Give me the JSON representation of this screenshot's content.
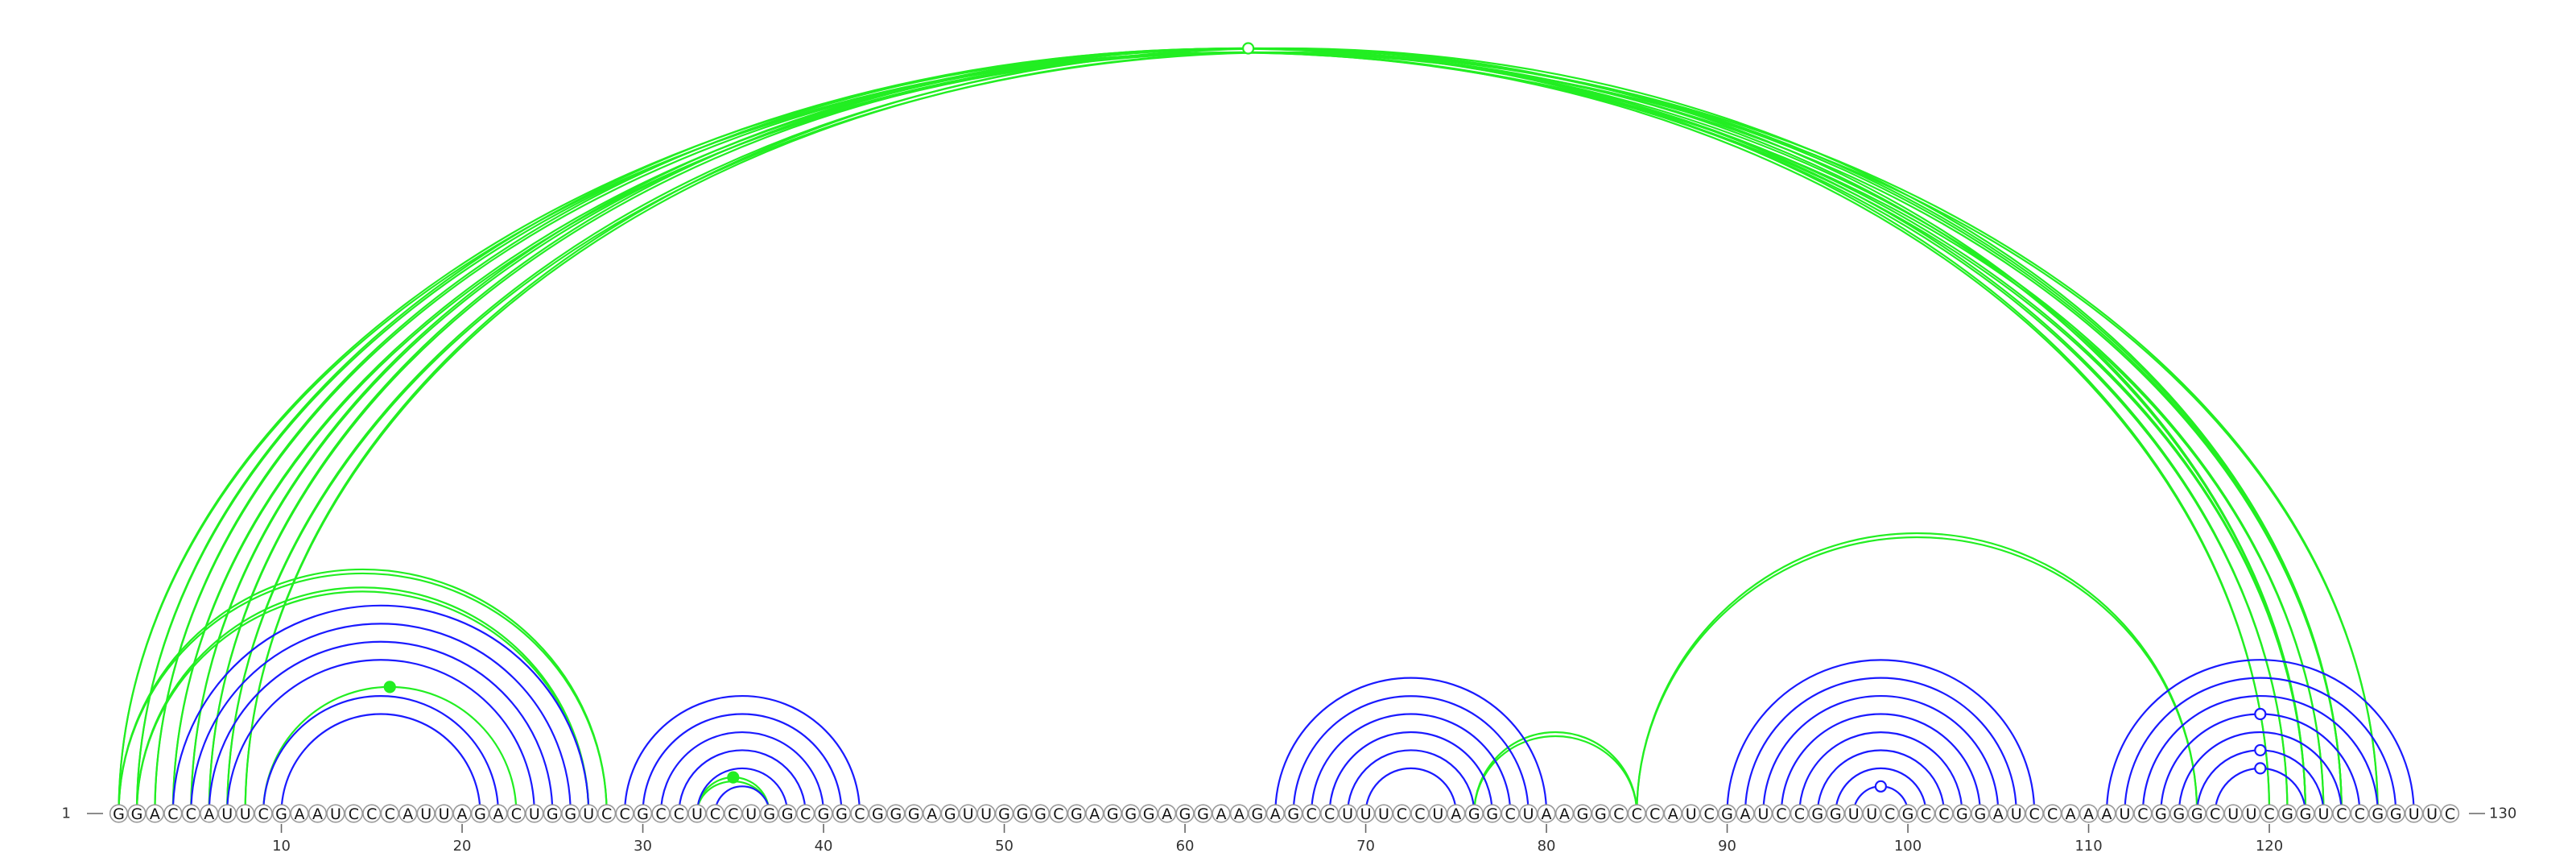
{
  "sequence": "GGACCAUUCGAAUCCCAUUAGACUGGUCCGCCUCCUGGCGGCGGGAGUUGGGCGAGGGAGGAAGAGCCUUUCCUAGGCUAAGGCCCAUCGAUCCGGUUCGCCGGAUCCAAAUCGGGCUUCGGUCCGGUUC",
  "axis": {
    "start_label": "1",
    "end_label": "130",
    "ticks": [
      10,
      20,
      30,
      40,
      50,
      60,
      70,
      80,
      90,
      100,
      110,
      120
    ]
  },
  "colors": {
    "blue": "#1a1aff",
    "green": "#22ee22"
  },
  "arc_groups": [
    {
      "color": "green",
      "from": 1,
      "to": 126,
      "style": "double"
    },
    {
      "color": "green",
      "from": 1,
      "to": 28,
      "style": "double"
    },
    {
      "color": "green",
      "from": 2,
      "to": 123,
      "style": "double"
    },
    {
      "color": "green",
      "from": 2,
      "to": 27,
      "style": "double"
    },
    {
      "color": "green",
      "from": 3,
      "to": 122,
      "style": "double"
    },
    {
      "color": "green",
      "from": 4,
      "to": 124,
      "style": "double"
    },
    {
      "color": "green",
      "from": 5,
      "to": 121,
      "style": "double"
    },
    {
      "color": "green",
      "from": 6,
      "to": 120,
      "style": "double"
    },
    {
      "color": "green",
      "from": 7,
      "to": 124,
      "style": "double"
    },
    {
      "color": "green",
      "from": 8,
      "to": 122,
      "style": "double"
    },
    {
      "color": "green",
      "from": 9,
      "to": 23,
      "style": "single"
    },
    {
      "color": "green",
      "from": 33,
      "to": 37,
      "style": "double"
    },
    {
      "color": "green",
      "from": 76,
      "to": 85,
      "style": "double"
    },
    {
      "color": "green",
      "from": 85,
      "to": 116,
      "style": "double"
    },
    {
      "color": "blue",
      "from": 4,
      "to": 27,
      "style": "single"
    },
    {
      "color": "blue",
      "from": 5,
      "to": 26,
      "style": "single"
    },
    {
      "color": "blue",
      "from": 6,
      "to": 25,
      "style": "single"
    },
    {
      "color": "blue",
      "from": 7,
      "to": 24,
      "style": "single"
    },
    {
      "color": "blue",
      "from": 9,
      "to": 22,
      "style": "single"
    },
    {
      "color": "blue",
      "from": 10,
      "to": 21,
      "style": "single"
    },
    {
      "color": "blue",
      "from": 29,
      "to": 42,
      "style": "single"
    },
    {
      "color": "blue",
      "from": 30,
      "to": 41,
      "style": "single"
    },
    {
      "color": "blue",
      "from": 31,
      "to": 40,
      "style": "single"
    },
    {
      "color": "blue",
      "from": 32,
      "to": 39,
      "style": "single"
    },
    {
      "color": "blue",
      "from": 33,
      "to": 38,
      "style": "single"
    },
    {
      "color": "blue",
      "from": 34,
      "to": 37,
      "style": "single"
    },
    {
      "color": "blue",
      "from": 65,
      "to": 80,
      "style": "single"
    },
    {
      "color": "blue",
      "from": 66,
      "to": 79,
      "style": "single"
    },
    {
      "color": "blue",
      "from": 67,
      "to": 78,
      "style": "single"
    },
    {
      "color": "blue",
      "from": 68,
      "to": 77,
      "style": "single"
    },
    {
      "color": "blue",
      "from": 69,
      "to": 76,
      "style": "single"
    },
    {
      "color": "blue",
      "from": 70,
      "to": 75,
      "style": "single"
    },
    {
      "color": "blue",
      "from": 90,
      "to": 107,
      "style": "single"
    },
    {
      "color": "blue",
      "from": 91,
      "to": 106,
      "style": "single"
    },
    {
      "color": "blue",
      "from": 92,
      "to": 105,
      "style": "single"
    },
    {
      "color": "blue",
      "from": 93,
      "to": 104,
      "style": "single"
    },
    {
      "color": "blue",
      "from": 94,
      "to": 103,
      "style": "single"
    },
    {
      "color": "blue",
      "from": 95,
      "to": 102,
      "style": "single"
    },
    {
      "color": "blue",
      "from": 96,
      "to": 101,
      "style": "single"
    },
    {
      "color": "blue",
      "from": 97,
      "to": 100,
      "style": "single"
    },
    {
      "color": "blue",
      "from": 111,
      "to": 128,
      "style": "single"
    },
    {
      "color": "blue",
      "from": 112,
      "to": 127,
      "style": "single"
    },
    {
      "color": "blue",
      "from": 113,
      "to": 126,
      "style": "single"
    },
    {
      "color": "blue",
      "from": 114,
      "to": 125,
      "style": "single"
    },
    {
      "color": "blue",
      "from": 115,
      "to": 124,
      "style": "single"
    },
    {
      "color": "blue",
      "from": 116,
      "to": 123,
      "style": "single"
    },
    {
      "color": "blue",
      "from": 117,
      "to": 122,
      "style": "single"
    }
  ],
  "markers": [
    {
      "arc": 0,
      "fill": "open",
      "color": "green"
    },
    {
      "arc": 10,
      "fill": "solid",
      "color": "green"
    },
    {
      "arc": 11,
      "fill": "solid",
      "color": "green"
    },
    {
      "arc": 39,
      "fill": "open",
      "color": "blue"
    },
    {
      "arc": 43,
      "fill": "open",
      "color": "blue"
    },
    {
      "arc": 45,
      "fill": "open",
      "color": "blue"
    },
    {
      "arc": 46,
      "fill": "open",
      "color": "blue"
    }
  ]
}
